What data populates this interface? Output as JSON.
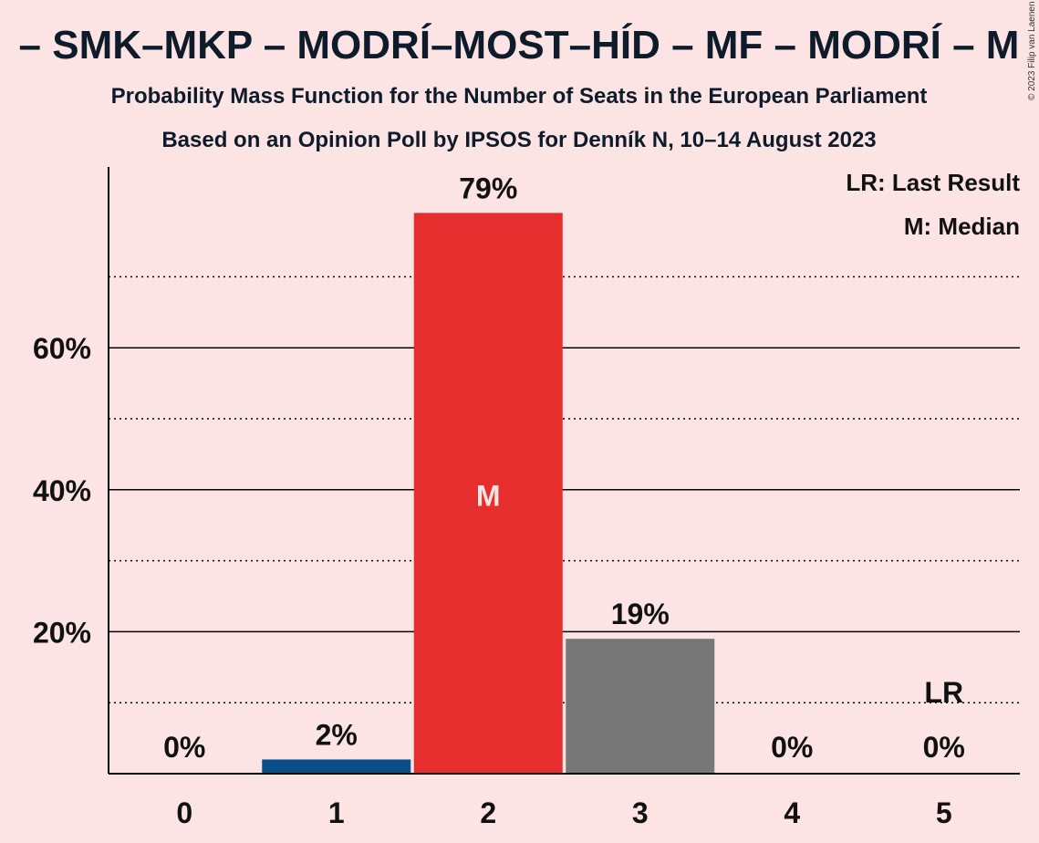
{
  "chart_data": {
    "type": "bar",
    "title": "– SMK–MKP – MODRÍ–MOST–HÍD – MF – MODRÍ – M",
    "subtitle": "Probability Mass Function for the Number of Seats in the European Parliament",
    "subtitle2": "Based on an Opinion Poll by IPSOS for Denník N, 10–14 August 2023",
    "copyright": "© 2023 Filip van Laenen",
    "categories": [
      "0",
      "1",
      "2",
      "3",
      "4",
      "5"
    ],
    "values": [
      0,
      2,
      79,
      19,
      0,
      0
    ],
    "value_labels": [
      "0%",
      "2%",
      "79%",
      "19%",
      "0%",
      "0%"
    ],
    "bar_colors": [
      "#0b4f8a",
      "#0b4f8a",
      "#e62e2e",
      "#777777",
      "#777777",
      "#777777"
    ],
    "ylim": [
      0,
      80
    ],
    "yticks": [
      {
        "value": 20,
        "label": "20%"
      },
      {
        "value": 40,
        "label": "40%"
      },
      {
        "value": 60,
        "label": "60%"
      }
    ],
    "minor_gridlines": [
      10,
      30,
      50,
      70
    ],
    "median_index": 2,
    "median_marker": "M",
    "last_result_index": 5,
    "last_result_marker": "LR",
    "legend": {
      "placement": "top-right",
      "items": [
        "LR: Last Result",
        "M: Median"
      ]
    }
  }
}
